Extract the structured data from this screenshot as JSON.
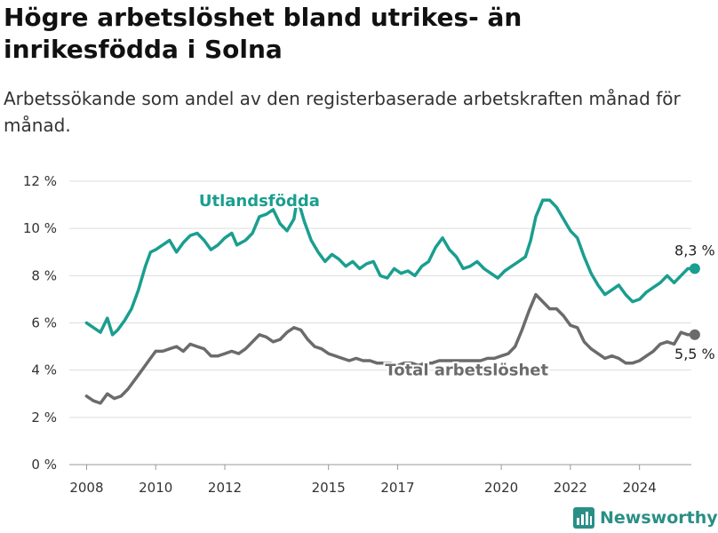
{
  "title": "Högre arbetslöshet bland utrikes- än inrikesfödda i Solna",
  "subtitle": "Arbetssökande som andel av den registerbaserade arbetskraften månad för månad.",
  "brand": {
    "name": "Newsworthy",
    "icon": "bar-chart-logo-icon",
    "color": "#2a8f86"
  },
  "chart_data": {
    "type": "line",
    "title": "Högre arbetslöshet bland utrikes- än inrikesfödda i Solna",
    "subtitle": "Arbetssökande som andel av den registerbaserade arbetskraften månad för månad.",
    "xlabel": "",
    "ylabel": "",
    "xlim": [
      2007.5,
      2025.5
    ],
    "ylim": [
      0,
      12
    ],
    "x_ticks": [
      2008,
      2010,
      2012,
      2015,
      2017,
      2020,
      2022,
      2024
    ],
    "x_tick_labels": [
      "2008",
      "2010",
      "2012",
      "2015",
      "2017",
      "2020",
      "2022",
      "2024"
    ],
    "y_ticks": [
      0,
      2,
      4,
      6,
      8,
      10,
      12
    ],
    "y_tick_labels": [
      "0 %",
      "2 %",
      "4 %",
      "6 %",
      "8 %",
      "10 %",
      "12 %"
    ],
    "grid": "horizontal",
    "legend": "inline",
    "series": [
      {
        "name": "Utlandsfödda",
        "color": "#1a9e8f",
        "end_label": "8,3 %",
        "points": [
          [
            2008.0,
            6.0
          ],
          [
            2008.2,
            5.8
          ],
          [
            2008.4,
            5.6
          ],
          [
            2008.6,
            6.2
          ],
          [
            2008.75,
            5.5
          ],
          [
            2008.9,
            5.7
          ],
          [
            2009.1,
            6.1
          ],
          [
            2009.3,
            6.6
          ],
          [
            2009.5,
            7.4
          ],
          [
            2009.7,
            8.4
          ],
          [
            2009.85,
            9.0
          ],
          [
            2010.0,
            9.1
          ],
          [
            2010.2,
            9.3
          ],
          [
            2010.4,
            9.5
          ],
          [
            2010.6,
            9.0
          ],
          [
            2010.8,
            9.4
          ],
          [
            2011.0,
            9.7
          ],
          [
            2011.2,
            9.8
          ],
          [
            2011.4,
            9.5
          ],
          [
            2011.6,
            9.1
          ],
          [
            2011.8,
            9.3
          ],
          [
            2012.0,
            9.6
          ],
          [
            2012.2,
            9.8
          ],
          [
            2012.35,
            9.3
          ],
          [
            2012.6,
            9.5
          ],
          [
            2012.8,
            9.8
          ],
          [
            2013.0,
            10.5
          ],
          [
            2013.2,
            10.6
          ],
          [
            2013.4,
            10.8
          ],
          [
            2013.6,
            10.2
          ],
          [
            2013.8,
            9.9
          ],
          [
            2014.0,
            10.4
          ],
          [
            2014.1,
            11.3
          ],
          [
            2014.3,
            10.3
          ],
          [
            2014.5,
            9.5
          ],
          [
            2014.7,
            9.0
          ],
          [
            2014.9,
            8.6
          ],
          [
            2015.1,
            8.9
          ],
          [
            2015.3,
            8.7
          ],
          [
            2015.5,
            8.4
          ],
          [
            2015.7,
            8.6
          ],
          [
            2015.9,
            8.3
          ],
          [
            2016.1,
            8.5
          ],
          [
            2016.3,
            8.6
          ],
          [
            2016.5,
            8.0
          ],
          [
            2016.7,
            7.9
          ],
          [
            2016.9,
            8.3
          ],
          [
            2017.1,
            8.1
          ],
          [
            2017.3,
            8.2
          ],
          [
            2017.5,
            8.0
          ],
          [
            2017.7,
            8.4
          ],
          [
            2017.9,
            8.6
          ],
          [
            2018.1,
            9.2
          ],
          [
            2018.3,
            9.6
          ],
          [
            2018.5,
            9.1
          ],
          [
            2018.7,
            8.8
          ],
          [
            2018.9,
            8.3
          ],
          [
            2019.1,
            8.4
          ],
          [
            2019.3,
            8.6
          ],
          [
            2019.5,
            8.3
          ],
          [
            2019.7,
            8.1
          ],
          [
            2019.9,
            7.9
          ],
          [
            2020.1,
            8.2
          ],
          [
            2020.3,
            8.4
          ],
          [
            2020.5,
            8.6
          ],
          [
            2020.7,
            8.8
          ],
          [
            2020.85,
            9.5
          ],
          [
            2021.0,
            10.5
          ],
          [
            2021.2,
            11.2
          ],
          [
            2021.4,
            11.2
          ],
          [
            2021.6,
            10.9
          ],
          [
            2021.8,
            10.4
          ],
          [
            2022.0,
            9.9
          ],
          [
            2022.2,
            9.6
          ],
          [
            2022.4,
            8.8
          ],
          [
            2022.6,
            8.1
          ],
          [
            2022.8,
            7.6
          ],
          [
            2023.0,
            7.2
          ],
          [
            2023.2,
            7.4
          ],
          [
            2023.4,
            7.6
          ],
          [
            2023.6,
            7.2
          ],
          [
            2023.8,
            6.9
          ],
          [
            2024.0,
            7.0
          ],
          [
            2024.2,
            7.3
          ],
          [
            2024.4,
            7.5
          ],
          [
            2024.6,
            7.7
          ],
          [
            2024.8,
            8.0
          ],
          [
            2025.0,
            7.7
          ],
          [
            2025.2,
            8.0
          ],
          [
            2025.4,
            8.3
          ],
          [
            2025.6,
            8.3
          ]
        ]
      },
      {
        "name": "Total arbetslöshet",
        "color": "#6b6b6b",
        "end_label": "5,5 %",
        "points": [
          [
            2008.0,
            2.9
          ],
          [
            2008.2,
            2.7
          ],
          [
            2008.4,
            2.6
          ],
          [
            2008.6,
            3.0
          ],
          [
            2008.8,
            2.8
          ],
          [
            2009.0,
            2.9
          ],
          [
            2009.2,
            3.2
          ],
          [
            2009.4,
            3.6
          ],
          [
            2009.6,
            4.0
          ],
          [
            2009.8,
            4.4
          ],
          [
            2010.0,
            4.8
          ],
          [
            2010.2,
            4.8
          ],
          [
            2010.4,
            4.9
          ],
          [
            2010.6,
            5.0
          ],
          [
            2010.8,
            4.8
          ],
          [
            2011.0,
            5.1
          ],
          [
            2011.2,
            5.0
          ],
          [
            2011.4,
            4.9
          ],
          [
            2011.6,
            4.6
          ],
          [
            2011.8,
            4.6
          ],
          [
            2012.0,
            4.7
          ],
          [
            2012.2,
            4.8
          ],
          [
            2012.4,
            4.7
          ],
          [
            2012.6,
            4.9
          ],
          [
            2012.8,
            5.2
          ],
          [
            2013.0,
            5.5
          ],
          [
            2013.2,
            5.4
          ],
          [
            2013.4,
            5.2
          ],
          [
            2013.6,
            5.3
          ],
          [
            2013.8,
            5.6
          ],
          [
            2014.0,
            5.8
          ],
          [
            2014.2,
            5.7
          ],
          [
            2014.4,
            5.3
          ],
          [
            2014.6,
            5.0
          ],
          [
            2014.8,
            4.9
          ],
          [
            2015.0,
            4.7
          ],
          [
            2015.2,
            4.6
          ],
          [
            2015.4,
            4.5
          ],
          [
            2015.6,
            4.4
          ],
          [
            2015.8,
            4.5
          ],
          [
            2016.0,
            4.4
          ],
          [
            2016.2,
            4.4
          ],
          [
            2016.4,
            4.3
          ],
          [
            2016.6,
            4.3
          ],
          [
            2016.8,
            4.3
          ],
          [
            2017.0,
            4.2
          ],
          [
            2017.2,
            4.3
          ],
          [
            2017.4,
            4.3
          ],
          [
            2017.6,
            4.2
          ],
          [
            2017.8,
            4.3
          ],
          [
            2018.0,
            4.3
          ],
          [
            2018.2,
            4.4
          ],
          [
            2018.4,
            4.4
          ],
          [
            2018.6,
            4.4
          ],
          [
            2018.8,
            4.4
          ],
          [
            2019.0,
            4.4
          ],
          [
            2019.2,
            4.4
          ],
          [
            2019.4,
            4.4
          ],
          [
            2019.6,
            4.5
          ],
          [
            2019.8,
            4.5
          ],
          [
            2020.0,
            4.6
          ],
          [
            2020.2,
            4.7
          ],
          [
            2020.4,
            5.0
          ],
          [
            2020.6,
            5.7
          ],
          [
            2020.8,
            6.5
          ],
          [
            2021.0,
            7.2
          ],
          [
            2021.2,
            6.9
          ],
          [
            2021.4,
            6.6
          ],
          [
            2021.6,
            6.6
          ],
          [
            2021.8,
            6.3
          ],
          [
            2022.0,
            5.9
          ],
          [
            2022.2,
            5.8
          ],
          [
            2022.4,
            5.2
          ],
          [
            2022.6,
            4.9
          ],
          [
            2022.8,
            4.7
          ],
          [
            2023.0,
            4.5
          ],
          [
            2023.2,
            4.6
          ],
          [
            2023.4,
            4.5
          ],
          [
            2023.6,
            4.3
          ],
          [
            2023.8,
            4.3
          ],
          [
            2024.0,
            4.4
          ],
          [
            2024.2,
            4.6
          ],
          [
            2024.4,
            4.8
          ],
          [
            2024.6,
            5.1
          ],
          [
            2024.8,
            5.2
          ],
          [
            2025.0,
            5.1
          ],
          [
            2025.2,
            5.6
          ],
          [
            2025.4,
            5.5
          ],
          [
            2025.6,
            5.5
          ]
        ]
      }
    ]
  }
}
